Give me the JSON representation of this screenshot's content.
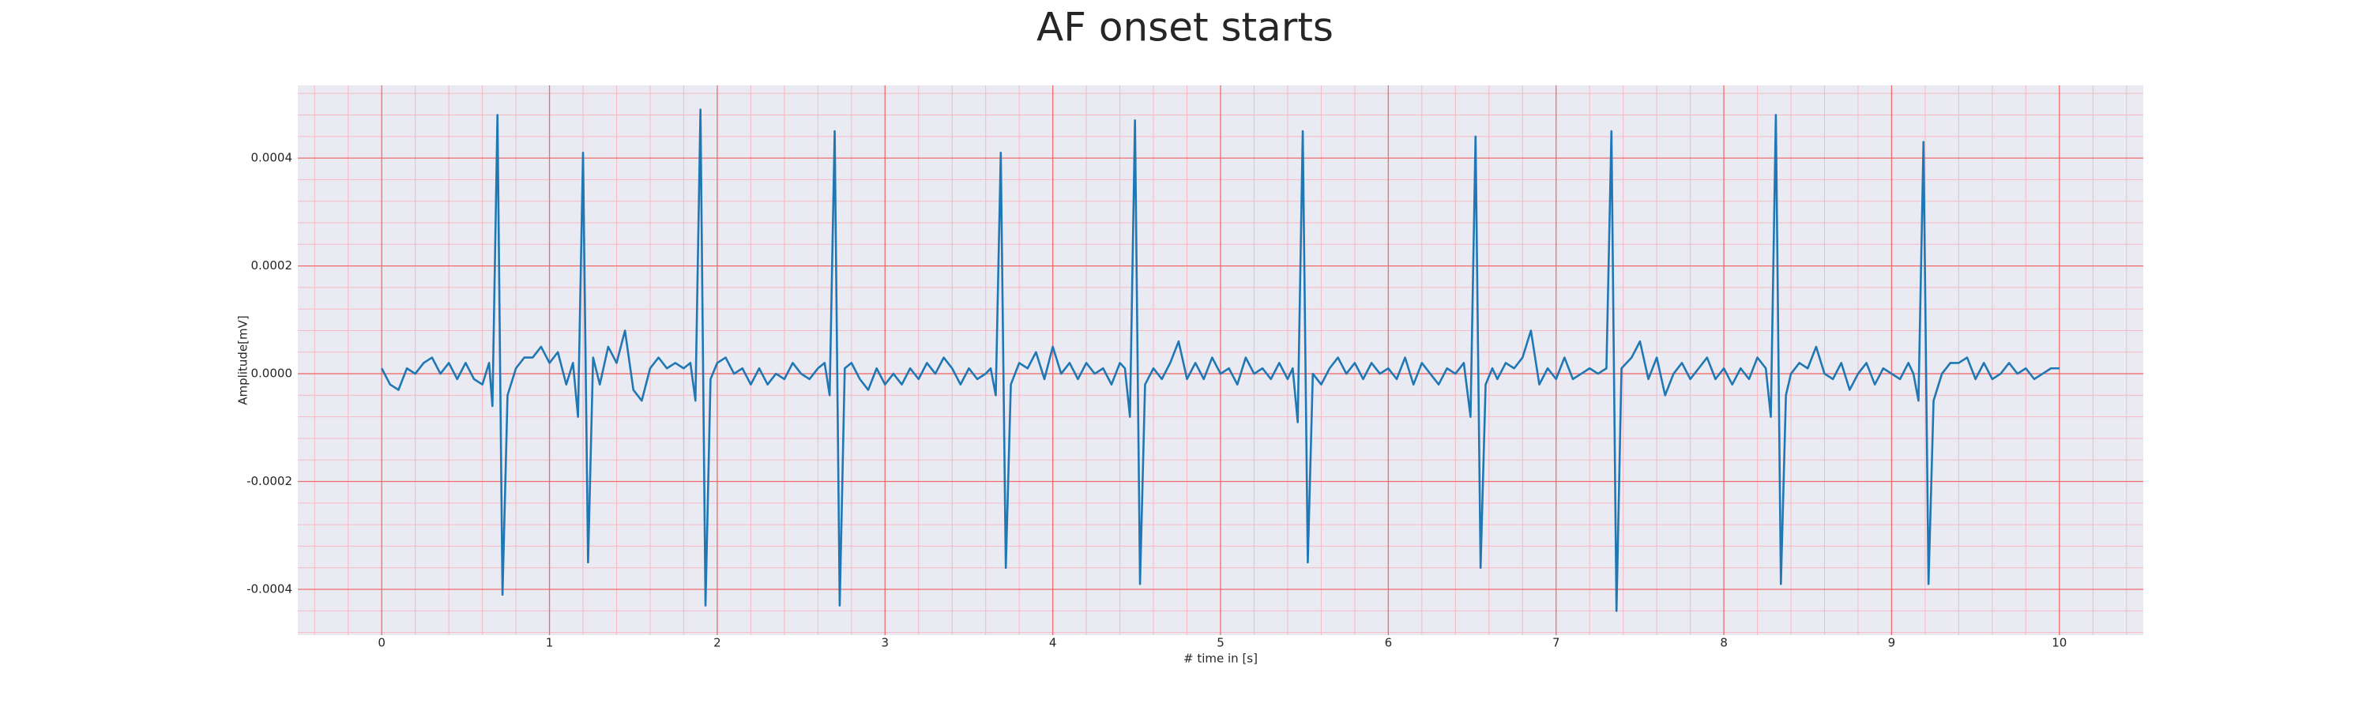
{
  "chart_data": {
    "type": "line",
    "title": "AF onset starts",
    "x_label": "# time in [s]",
    "y_label": "Amplitude[mV]",
    "color": "#1f77b4",
    "grid": true,
    "minor_grid": true,
    "xlim": [
      -0.5,
      10.5
    ],
    "ylim": [
      -0.000485,
      0.000535
    ],
    "xticks": [
      0,
      1,
      2,
      3,
      4,
      5,
      6,
      7,
      8,
      9,
      10
    ],
    "yticks": [
      -0.0004,
      -0.0002,
      {
        "value": 0,
        "label": "0.0000"
      },
      0.0002,
      0.0004
    ],
    "x": [
      0.0,
      0.05,
      0.1,
      0.15,
      0.2,
      0.25,
      0.3,
      0.35,
      0.4,
      0.45,
      0.5,
      0.55,
      0.6,
      0.64,
      0.66,
      0.69,
      0.72,
      0.75,
      0.8,
      0.85,
      0.9,
      0.95,
      1.0,
      1.05,
      1.1,
      1.14,
      1.17,
      1.2,
      1.23,
      1.26,
      1.3,
      1.35,
      1.4,
      1.45,
      1.5,
      1.55,
      1.6,
      1.65,
      1.7,
      1.75,
      1.8,
      1.84,
      1.87,
      1.9,
      1.93,
      1.96,
      2.0,
      2.05,
      2.1,
      2.15,
      2.2,
      2.25,
      2.3,
      2.35,
      2.4,
      2.45,
      2.5,
      2.55,
      2.6,
      2.64,
      2.67,
      2.7,
      2.73,
      2.76,
      2.8,
      2.85,
      2.9,
      2.95,
      3.0,
      3.05,
      3.1,
      3.15,
      3.2,
      3.25,
      3.3,
      3.35,
      3.4,
      3.45,
      3.5,
      3.55,
      3.6,
      3.63,
      3.66,
      3.69,
      3.72,
      3.75,
      3.8,
      3.85,
      3.9,
      3.95,
      4.0,
      4.05,
      4.1,
      4.15,
      4.2,
      4.25,
      4.3,
      4.35,
      4.4,
      4.43,
      4.46,
      4.49,
      4.52,
      4.55,
      4.6,
      4.65,
      4.7,
      4.75,
      4.8,
      4.85,
      4.9,
      4.95,
      5.0,
      5.05,
      5.1,
      5.15,
      5.2,
      5.25,
      5.3,
      5.35,
      5.4,
      5.43,
      5.46,
      5.49,
      5.52,
      5.55,
      5.6,
      5.65,
      5.7,
      5.75,
      5.8,
      5.85,
      5.9,
      5.95,
      6.0,
      6.05,
      6.1,
      6.15,
      6.2,
      6.25,
      6.3,
      6.35,
      6.4,
      6.45,
      6.49,
      6.52,
      6.55,
      6.58,
      6.62,
      6.65,
      6.7,
      6.75,
      6.8,
      6.85,
      6.9,
      6.95,
      7.0,
      7.05,
      7.1,
      7.15,
      7.2,
      7.25,
      7.3,
      7.33,
      7.36,
      7.39,
      7.45,
      7.5,
      7.55,
      7.6,
      7.65,
      7.7,
      7.75,
      7.8,
      7.85,
      7.9,
      7.95,
      8.0,
      8.05,
      8.1,
      8.15,
      8.2,
      8.25,
      8.28,
      8.31,
      8.34,
      8.37,
      8.4,
      8.45,
      8.5,
      8.55,
      8.6,
      8.65,
      8.7,
      8.75,
      8.8,
      8.85,
      8.9,
      8.95,
      9.0,
      9.05,
      9.1,
      9.13,
      9.16,
      9.19,
      9.22,
      9.25,
      9.3,
      9.35,
      9.4,
      9.45,
      9.5,
      9.55,
      9.6,
      9.65,
      9.7,
      9.75,
      9.8,
      9.85,
      9.9,
      9.95,
      10.0
    ],
    "values": [
      1e-05,
      -2e-05,
      -3e-05,
      1e-05,
      0.0,
      2e-05,
      3e-05,
      0.0,
      2e-05,
      -1e-05,
      2e-05,
      -1e-05,
      -2e-05,
      2e-05,
      -6e-05,
      0.00048,
      -0.00041,
      -4e-05,
      1e-05,
      3e-05,
      3e-05,
      5e-05,
      2e-05,
      4e-05,
      -2e-05,
      2e-05,
      -8e-05,
      0.00041,
      -0.00035,
      3e-05,
      -2e-05,
      5e-05,
      2e-05,
      8e-05,
      -3e-05,
      -5e-05,
      1e-05,
      3e-05,
      1e-05,
      2e-05,
      1e-05,
      2e-05,
      -5e-05,
      0.00049,
      -0.00043,
      -1e-05,
      2e-05,
      3e-05,
      0.0,
      1e-05,
      -2e-05,
      1e-05,
      -2e-05,
      0.0,
      -1e-05,
      2e-05,
      0.0,
      -1e-05,
      1e-05,
      2e-05,
      -4e-05,
      0.00045,
      -0.00043,
      1e-05,
      2e-05,
      -1e-05,
      -3e-05,
      1e-05,
      -2e-05,
      0.0,
      -2e-05,
      1e-05,
      -1e-05,
      2e-05,
      0.0,
      3e-05,
      1e-05,
      -2e-05,
      1e-05,
      -1e-05,
      0.0,
      1e-05,
      -4e-05,
      0.00041,
      -0.00036,
      -2e-05,
      2e-05,
      1e-05,
      4e-05,
      -1e-05,
      5e-05,
      0.0,
      2e-05,
      -1e-05,
      2e-05,
      0.0,
      1e-05,
      -2e-05,
      2e-05,
      1e-05,
      -8e-05,
      0.00047,
      -0.00039,
      -2e-05,
      1e-05,
      -1e-05,
      2e-05,
      6e-05,
      -1e-05,
      2e-05,
      -1e-05,
      3e-05,
      0.0,
      1e-05,
      -2e-05,
      3e-05,
      0.0,
      1e-05,
      -1e-05,
      2e-05,
      -1e-05,
      1e-05,
      -9e-05,
      0.00045,
      -0.00035,
      0.0,
      -2e-05,
      1e-05,
      3e-05,
      0.0,
      2e-05,
      -1e-05,
      2e-05,
      0.0,
      1e-05,
      -1e-05,
      3e-05,
      -2e-05,
      2e-05,
      0.0,
      -2e-05,
      1e-05,
      0.0,
      2e-05,
      -8e-05,
      0.00044,
      -0.00036,
      -2e-05,
      1e-05,
      -1e-05,
      2e-05,
      1e-05,
      3e-05,
      8e-05,
      -2e-05,
      1e-05,
      -1e-05,
      3e-05,
      -1e-05,
      0.0,
      1e-05,
      0.0,
      1e-05,
      0.00045,
      -0.00044,
      1e-05,
      3e-05,
      6e-05,
      -1e-05,
      3e-05,
      -4e-05,
      0.0,
      2e-05,
      -1e-05,
      1e-05,
      3e-05,
      -1e-05,
      1e-05,
      -2e-05,
      1e-05,
      -1e-05,
      3e-05,
      1e-05,
      -8e-05,
      0.00048,
      -0.00039,
      -4e-05,
      0.0,
      2e-05,
      1e-05,
      5e-05,
      0.0,
      -1e-05,
      2e-05,
      -3e-05,
      0.0,
      2e-05,
      -2e-05,
      1e-05,
      0.0,
      -1e-05,
      2e-05,
      0.0,
      -5e-05,
      0.00043,
      -0.00039,
      -5e-05,
      0.0,
      2e-05,
      2e-05,
      3e-05,
      -1e-05,
      2e-05,
      -1e-05,
      0.0,
      2e-05,
      0.0,
      1e-05,
      -1e-05,
      0.0,
      1e-05,
      1e-05
    ]
  }
}
